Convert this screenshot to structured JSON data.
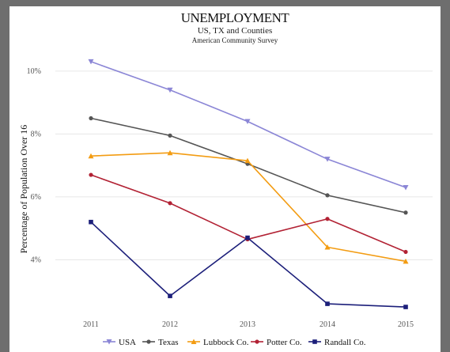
{
  "chart_data": {
    "type": "line",
    "title": "UNEMPLOYMENT",
    "subtitle": "US, TX and Counties",
    "source": "American Community Survey",
    "xlabel": "",
    "ylabel": "Percentage of Population Over 16",
    "x": [
      "2011",
      "2012",
      "2013",
      "2014",
      "2015"
    ],
    "ylim": [
      2.3,
      10.6
    ],
    "yticks": [
      4,
      6,
      8,
      10
    ],
    "ytick_labels": [
      "4%",
      "6%",
      "8%",
      "10%"
    ],
    "grid": true,
    "legend_position": "bottom",
    "series": [
      {
        "name": "USA",
        "color": "#8b86d6",
        "marker": "triangle-down",
        "values": [
          10.3,
          9.4,
          8.4,
          7.2,
          6.3
        ]
      },
      {
        "name": "Texas",
        "color": "#555555",
        "marker": "dot",
        "values": [
          8.5,
          7.95,
          7.05,
          6.05,
          5.5
        ]
      },
      {
        "name": "Lubbock Co.",
        "color": "#f39c12",
        "marker": "triangle-up",
        "values": [
          7.3,
          7.4,
          7.15,
          4.4,
          3.95
        ]
      },
      {
        "name": "Potter Co.",
        "color": "#b22234",
        "marker": "dot",
        "values": [
          6.7,
          5.8,
          4.65,
          5.3,
          4.25
        ]
      },
      {
        "name": "Randall Co.",
        "color": "#1c1f7a",
        "marker": "square",
        "values": [
          5.2,
          2.85,
          4.7,
          2.6,
          2.5
        ]
      }
    ]
  }
}
